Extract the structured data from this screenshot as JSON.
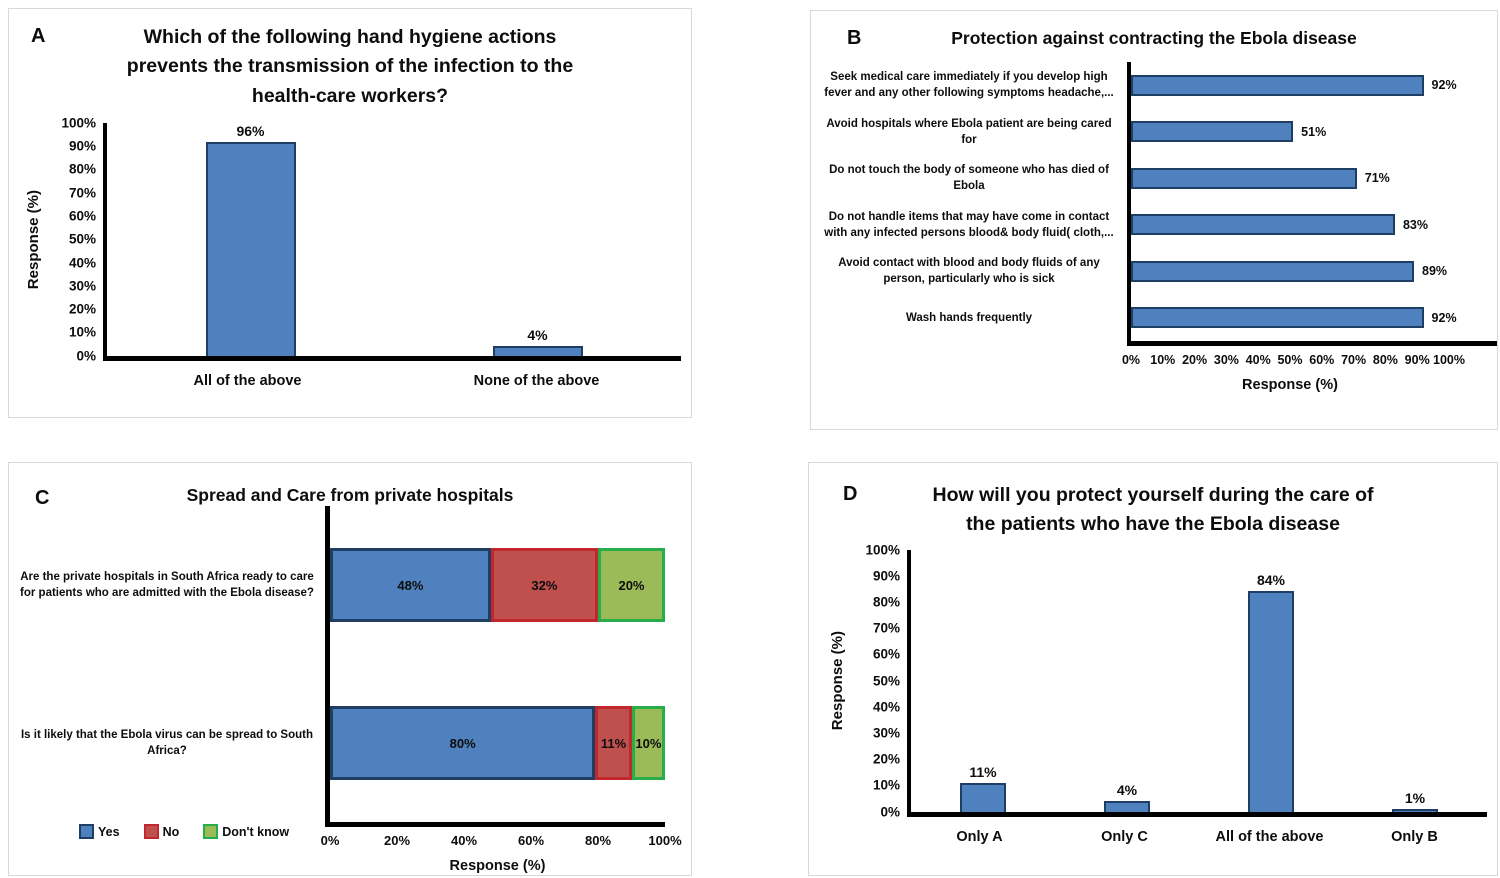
{
  "colors": {
    "bar_blue": "#4E81BD",
    "bar_blue_border": "#1F3E63",
    "bar_red": "#C0504D",
    "bar_red_border": "#C1272D",
    "bar_green": "#9BBB59",
    "bar_green_border": "#27AE4B",
    "axis": "#000000",
    "panel_border": "#D8D8D8"
  },
  "chart_data": [
    {
      "panel": "A",
      "type": "bar",
      "title": "Which of the following hand hygiene actions\nprevents the transmission of the infection to the\nhealth-care workers?",
      "categories": [
        "All of the above",
        "None of the above"
      ],
      "values": [
        96,
        4
      ],
      "value_labels": [
        "96%",
        "4%"
      ],
      "ylabel": "Response (%)",
      "ylim": [
        0,
        100
      ],
      "yticks": [
        "0%",
        "10%",
        "20%",
        "30%",
        "40%",
        "50%",
        "60%",
        "70%",
        "80%",
        "90%",
        "100%"
      ],
      "grid": false
    },
    {
      "panel": "B",
      "type": "horizontal-bar",
      "title": "Protection against contracting the Ebola disease",
      "categories": [
        "Seek medical care immediately if you develop high\nfever and any other following symptoms headache,...",
        "Avoid hospitals where Ebola patient are being cared\nfor",
        "Do not touch the body of someone who has died of\nEbola",
        "Do not handle items that may have come in contact\nwith any infected persons blood& body fluid( cloth,...",
        "Avoid contact with blood and body fluids of any\nperson, particularly who is sick",
        "Wash hands frequently"
      ],
      "values": [
        92,
        51,
        71,
        83,
        89,
        92
      ],
      "value_labels": [
        "92%",
        "51%",
        "71%",
        "83%",
        "89%",
        "92%"
      ],
      "xlabel": "Response (%)",
      "xlim": [
        0,
        100
      ],
      "xticks": [
        "0%",
        "10%",
        "20%",
        "30%",
        "40%",
        "50%",
        "60%",
        "70%",
        "80%",
        "90%",
        "100%"
      ],
      "grid": false
    },
    {
      "panel": "C",
      "type": "stacked-horizontal-bar",
      "title": "Spread and Care from private hospitals",
      "categories": [
        "Are the private hospitals in South Africa ready to care\nfor patients who are admitted with the Ebola disease?",
        "Is it likely that the Ebola virus can be spread to South\nAfrica?"
      ],
      "series": [
        {
          "name": "Yes",
          "values": [
            48,
            80
          ]
        },
        {
          "name": "No",
          "values": [
            32,
            11
          ]
        },
        {
          "name": "Don't know",
          "values": [
            20,
            10
          ]
        }
      ],
      "value_labels": [
        [
          "48%",
          "32%",
          "20%"
        ],
        [
          "80%",
          "11%",
          "10%"
        ]
      ],
      "xlabel": "Response (%)",
      "xlim": [
        0,
        100
      ],
      "xticks": [
        "0%",
        "20%",
        "40%",
        "60%",
        "80%",
        "100%"
      ],
      "legend": [
        "Yes",
        "No",
        "Don't know"
      ],
      "legend_position": "bottom-left",
      "grid": false
    },
    {
      "panel": "D",
      "type": "bar",
      "title": "How will you protect yourself during the care of\nthe patients who have the Ebola disease",
      "categories": [
        "Only A",
        "Only C",
        "All of the above",
        "Only B"
      ],
      "values": [
        11,
        4,
        84,
        1
      ],
      "value_labels": [
        "11%",
        "4%",
        "84%",
        "1%"
      ],
      "ylabel": "Response (%)",
      "ylim": [
        0,
        100
      ],
      "yticks": [
        "0%",
        "10%",
        "20%",
        "30%",
        "40%",
        "50%",
        "60%",
        "70%",
        "80%",
        "90%",
        "100%"
      ],
      "grid": false
    }
  ]
}
